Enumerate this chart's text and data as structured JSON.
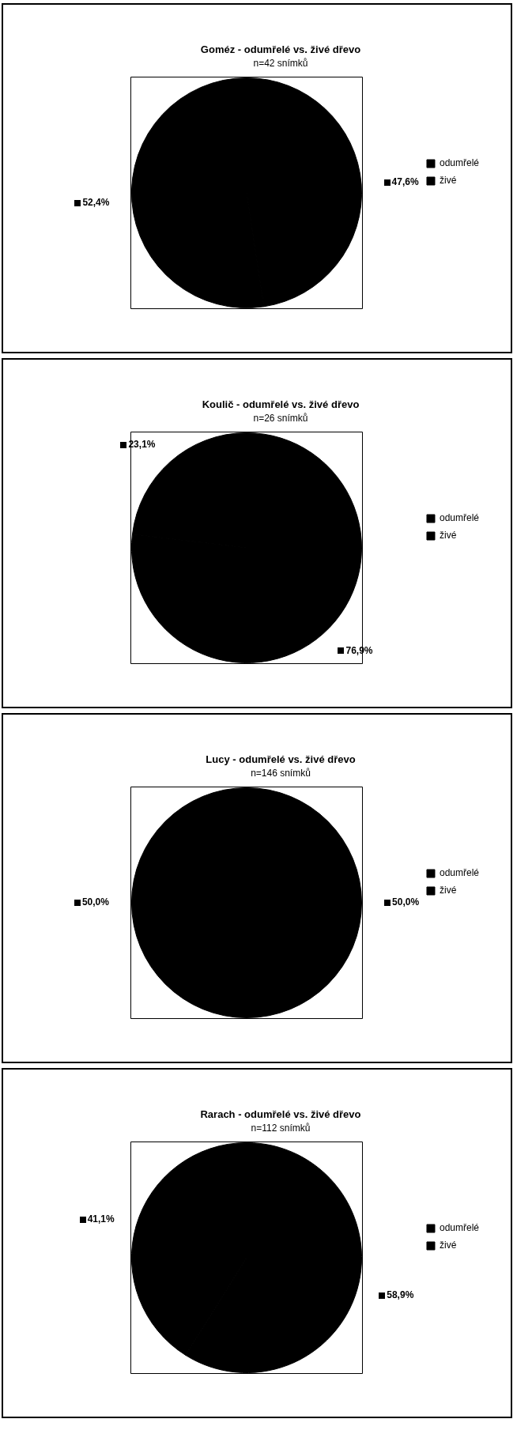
{
  "chart_data": [
    {
      "type": "pie",
      "title": "Goméz - odumřelé vs. živé dřevo",
      "subtitle": "n=42 snímků",
      "categories": [
        "odumřelé",
        "živé"
      ],
      "values": [
        47.6,
        52.4
      ],
      "colors": [
        "#000000",
        "#000000"
      ],
      "value_labels": [
        "47,6%",
        "52,4%"
      ],
      "legend": "right"
    },
    {
      "type": "pie",
      "title": "Koulič - odumřelé vs. živé dřevo",
      "subtitle": "n=26 snímků",
      "categories": [
        "odumřelé",
        "živé"
      ],
      "values": [
        76.9,
        23.1
      ],
      "colors": [
        "#000000",
        "#000000"
      ],
      "value_labels": [
        "76,9%",
        "23,1%"
      ],
      "legend": "right"
    },
    {
      "type": "pie",
      "title": "Lucy - odumřelé vs. živé dřevo",
      "subtitle": "n=146 snímků",
      "categories": [
        "odumřelé",
        "živé"
      ],
      "values": [
        50.0,
        50.0
      ],
      "colors": [
        "#000000",
        "#000000"
      ],
      "value_labels": [
        "50,0%",
        "50,0%"
      ],
      "legend": "right"
    },
    {
      "type": "pie",
      "title": "Rarach - odumřelé vs. živé dřevo",
      "subtitle": "n=112 snímků",
      "categories": [
        "odumřelé",
        "živé"
      ],
      "values": [
        58.9,
        41.1
      ],
      "colors": [
        "#000000",
        "#000000"
      ],
      "value_labels": [
        "58,9%",
        "41,1%"
      ],
      "legend": "right"
    }
  ]
}
